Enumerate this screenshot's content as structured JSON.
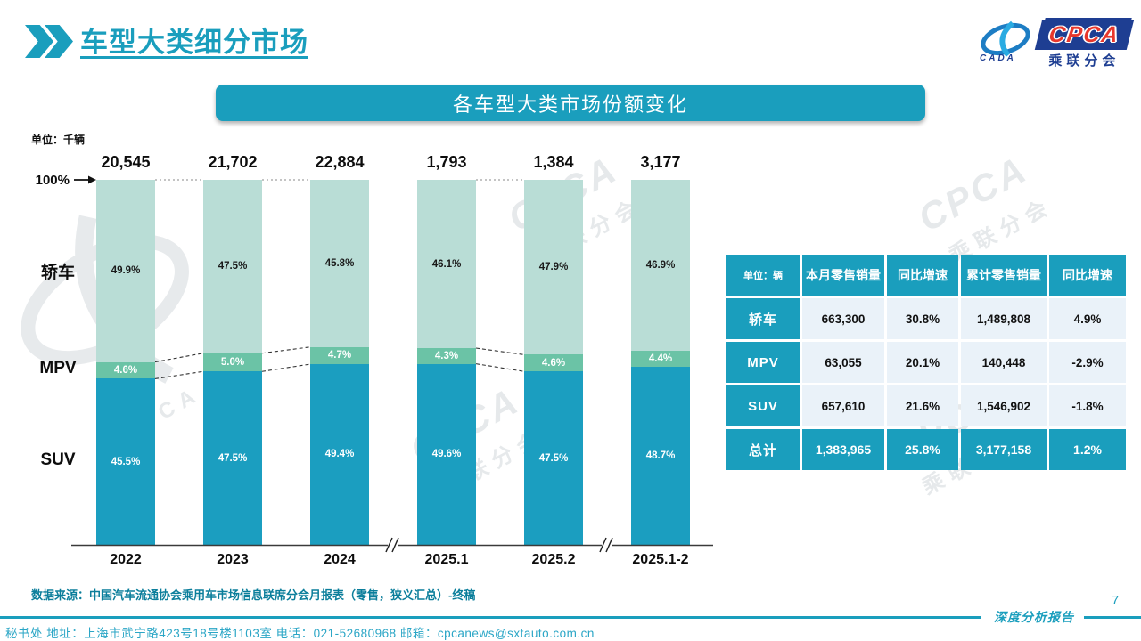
{
  "page": {
    "title": "车型大类细分市场",
    "page_number": "7",
    "report_type_label": "深度分析报告"
  },
  "logo": {
    "cpca": "CPCA",
    "cada": "CADA",
    "subtitle": "乘联分会"
  },
  "banner": {
    "title": "各车型大类市场份额变化"
  },
  "chart_data": {
    "type": "bar",
    "subtype": "100%-stacked-column",
    "title": "各车型大类市场份额变化",
    "unit_label": "单位：千辆",
    "axis_100_label": "100%",
    "categories": [
      "2022",
      "2023",
      "2024",
      "2025.1",
      "2025.2",
      "2025.1-2"
    ],
    "totals": [
      "20,545",
      "21,702",
      "22,884",
      "1,793",
      "1,384",
      "3,177"
    ],
    "series": [
      {
        "key": "sedan",
        "name": "轿车",
        "color": "#b9ddd6",
        "label_color": "#1a1a1a",
        "values": [
          49.9,
          47.5,
          45.8,
          46.1,
          47.9,
          46.9
        ]
      },
      {
        "key": "mpv",
        "name": "MPV",
        "color": "#6bc3a6",
        "label_color": "#ffffff",
        "values": [
          4.6,
          5.0,
          4.7,
          4.3,
          4.6,
          4.4
        ]
      },
      {
        "key": "suv",
        "name": "SUV",
        "color": "#1b9ec0",
        "label_color": "#ffffff",
        "values": [
          45.5,
          47.5,
          49.4,
          49.6,
          47.5,
          48.7
        ]
      }
    ],
    "stack_order_top_to_bottom": [
      "轿车",
      "MPV",
      "SUV"
    ],
    "ylim": [
      0,
      100
    ],
    "grid": false,
    "legend_position": "left-row-labels",
    "axis_breaks_after": [
      2,
      4
    ],
    "connect_pairs": [
      [
        0,
        1
      ],
      [
        1,
        2
      ],
      [
        3,
        4
      ]
    ]
  },
  "table": {
    "unit_header": "单位：辆",
    "header": [
      "单位：辆",
      "本月零售销量",
      "同比增速",
      "累计零售销量",
      "同比增速"
    ],
    "rows": [
      {
        "label": "轿车",
        "cells": [
          "663,300",
          "30.8%",
          "1,489,808",
          "4.9%"
        ],
        "total": false
      },
      {
        "label": "MPV",
        "cells": [
          "63,055",
          "20.1%",
          "140,448",
          "-2.9%"
        ],
        "total": false
      },
      {
        "label": "SUV",
        "cells": [
          "657,610",
          "21.6%",
          "1,546,902",
          "-1.8%"
        ],
        "total": false
      },
      {
        "label": "总计",
        "cells": [
          "1,383,965",
          "25.8%",
          "3,177,158",
          "1.2%"
        ],
        "total": true
      }
    ]
  },
  "source_note": "数据来源：中国汽车流通协会乘用车市场信息联席分会月报表（零售，狭义汇总）-终稿",
  "footer": {
    "text": "秘书处  地址：上海市武宁路423号18号楼1103室 电话：021-52680968  邮箱：cpcanews@sxtauto.com.cn"
  },
  "watermark": {
    "text": "CPCA",
    "subtext": "乘联分会"
  },
  "colors": {
    "accent": "#1a9ebd",
    "source_note": "#0b7e9b",
    "footer_text": "#2ba6c6",
    "axis": "#3a3a3a",
    "connector": "#333333",
    "dotted_top": "#b0b0b0",
    "table_cell_bg": "#eaf2f9"
  }
}
